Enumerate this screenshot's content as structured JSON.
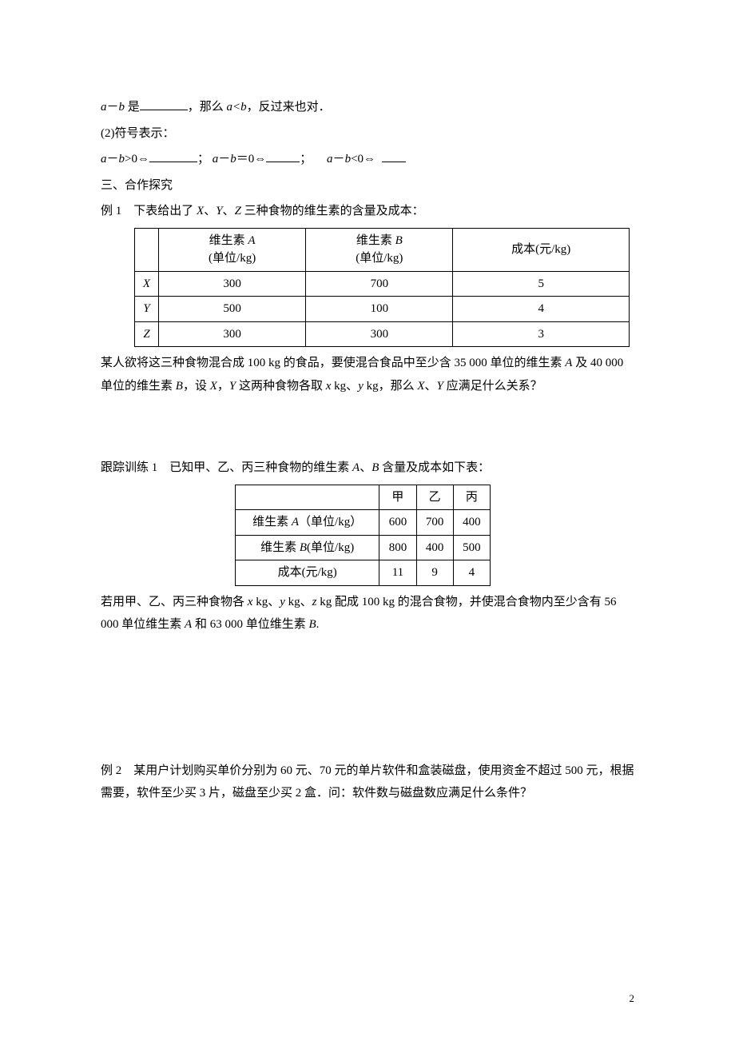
{
  "lines": {
    "l1_prefix": "a",
    "l1_op": "－",
    "l1_suffix": "b",
    "l1_text1": " 是",
    "l1_text2": "，那么 ",
    "l1_rel": "a<b",
    "l1_text3": "，反过来也对．",
    "l2": "(2)符号表示：",
    "l3_a": "a",
    "l3_minus": "－",
    "l3_b": "b",
    "l3_gt": ">0⇔",
    "l3_sep1": "； ",
    "l3_eq": "＝0⇔",
    "l3_sep2": "；",
    "l3_lt": "<0⇔",
    "l4": "三、合作探究",
    "ex1_title": "例 1　下表给出了 X、Y、Z 三种食物的维生素的含量及成本：",
    "ex1_para": "某人欲将这三种食物混合成 100 kg 的食品，要使混合食品中至少含 35 000 单位的维生素 A 及 40 000 单位的维生素 B，设 X，Y 这两种食物各取 x kg、y kg，那么 X、Y 应满足什么关系？",
    "track1_title": "跟踪训练 1　已知甲、乙、丙三种食物的维生素 A、B 含量及成本如下表：",
    "track1_para": "若用甲、乙、丙三种食物各 x kg、y kg、z kg 配成 100 kg 的混合食物，并使混合食物内至少含有 56 000 单位维生素 A 和 63 000 单位维生素 B.",
    "ex2_para": "例 2　某用户计划购买单价分别为 60 元、70 元的单片软件和盒装磁盘，使用资金不超过 500 元，根据需要，软件至少买 3 片，磁盘至少买 2 盒．问：软件数与磁盘数应满足什么条件？"
  },
  "table1": {
    "header": [
      "",
      "维生素 A\n(单位/kg)",
      "维生素 B\n(单位/kg)",
      "成本(元/kg)"
    ],
    "rows": [
      [
        "X",
        "300",
        "700",
        "5"
      ],
      [
        "Y",
        "500",
        "100",
        "4"
      ],
      [
        "Z",
        "300",
        "300",
        "3"
      ]
    ]
  },
  "table2": {
    "header": [
      "",
      "甲",
      "乙",
      "丙"
    ],
    "rows": [
      [
        "维生素 A（单位/kg）",
        "600",
        "700",
        "400"
      ],
      [
        "维生素 B(单位/kg)",
        "800",
        "400",
        "500"
      ],
      [
        "成本(元/kg)",
        "11",
        "9",
        "4"
      ]
    ]
  },
  "pagenum": "2"
}
